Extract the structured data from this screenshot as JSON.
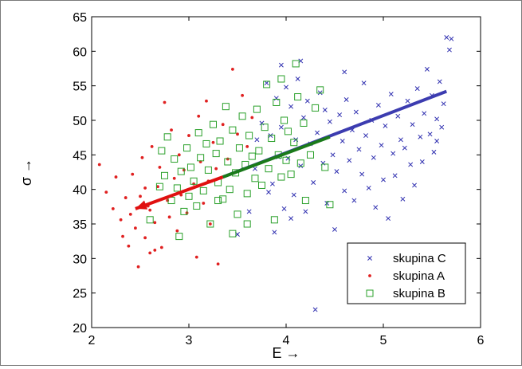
{
  "chart_data": {
    "type": "scatter",
    "xlabel": "E →",
    "ylabel": "σ →",
    "xlim": [
      2,
      6
    ],
    "ylim": [
      20,
      65
    ],
    "xticks": [
      2,
      3,
      4,
      5,
      6
    ],
    "yticks": [
      20,
      25,
      30,
      35,
      40,
      45,
      50,
      55,
      60,
      65
    ],
    "grid": false,
    "legend_position": "bottom-right",
    "series": [
      {
        "name": "skupina C",
        "marker": "x",
        "color": "#3030b0",
        "points": [
          [
            3.5,
            33.5
          ],
          [
            3.62,
            36.8
          ],
          [
            3.68,
            43.0
          ],
          [
            3.7,
            47.2
          ],
          [
            3.75,
            49.6
          ],
          [
            3.8,
            55.4
          ],
          [
            3.82,
            39.6
          ],
          [
            3.84,
            47.8
          ],
          [
            3.86,
            40.8
          ],
          [
            3.88,
            33.8
          ],
          [
            3.9,
            53.2
          ],
          [
            3.92,
            44.7
          ],
          [
            3.95,
            49.0
          ],
          [
            3.98,
            37.2
          ],
          [
            4.0,
            54.8
          ],
          [
            4.02,
            44.5
          ],
          [
            4.05,
            52.0
          ],
          [
            4.08,
            39.2
          ],
          [
            4.1,
            47.2
          ],
          [
            4.12,
            56.0
          ],
          [
            4.15,
            43.4
          ],
          [
            4.18,
            50.4
          ],
          [
            4.2,
            36.8
          ],
          [
            4.22,
            52.8
          ],
          [
            4.25,
            46.6
          ],
          [
            4.28,
            41.0
          ],
          [
            4.3,
            22.6
          ],
          [
            4.32,
            48.2
          ],
          [
            4.35,
            54.0
          ],
          [
            4.38,
            43.8
          ],
          [
            4.4,
            51.5
          ],
          [
            4.42,
            38.0
          ],
          [
            4.45,
            49.8
          ],
          [
            4.48,
            45.0
          ],
          [
            4.5,
            34.2
          ],
          [
            4.52,
            42.6
          ],
          [
            4.55,
            50.8
          ],
          [
            4.58,
            47.0
          ],
          [
            4.6,
            39.8
          ],
          [
            4.62,
            53.0
          ],
          [
            4.65,
            44.2
          ],
          [
            4.68,
            48.6
          ],
          [
            4.7,
            38.4
          ],
          [
            4.72,
            51.2
          ],
          [
            4.75,
            45.8
          ],
          [
            4.78,
            42.2
          ],
          [
            4.8,
            55.4
          ],
          [
            4.82,
            47.8
          ],
          [
            4.85,
            40.2
          ],
          [
            4.88,
            50.0
          ],
          [
            4.9,
            44.6
          ],
          [
            4.92,
            37.4
          ],
          [
            4.95,
            52.2
          ],
          [
            4.98,
            46.4
          ],
          [
            5.0,
            41.4
          ],
          [
            5.02,
            49.2
          ],
          [
            5.05,
            35.8
          ],
          [
            5.08,
            53.8
          ],
          [
            5.1,
            45.2
          ],
          [
            5.12,
            42.0
          ],
          [
            5.15,
            50.6
          ],
          [
            5.18,
            47.2
          ],
          [
            5.2,
            38.6
          ],
          [
            5.22,
            46.0
          ],
          [
            5.25,
            52.8
          ],
          [
            5.28,
            43.6
          ],
          [
            5.3,
            49.4
          ],
          [
            5.32,
            40.6
          ],
          [
            5.35,
            54.6
          ],
          [
            5.38,
            47.6
          ],
          [
            5.4,
            44.0
          ],
          [
            5.42,
            51.0
          ],
          [
            5.45,
            57.4
          ],
          [
            5.48,
            48.0
          ],
          [
            5.5,
            53.6
          ],
          [
            5.52,
            45.4
          ],
          [
            5.55,
            50.2
          ],
          [
            5.58,
            55.6
          ],
          [
            5.6,
            49.0
          ],
          [
            5.62,
            52.4
          ],
          [
            5.65,
            62.0
          ],
          [
            5.7,
            61.8
          ],
          [
            5.68,
            60.2
          ],
          [
            5.55,
            47.0
          ],
          [
            4.6,
            57.0
          ],
          [
            4.15,
            58.6
          ],
          [
            3.95,
            58.0
          ],
          [
            4.05,
            35.8
          ]
        ]
      },
      {
        "name": "skupina A",
        "marker": "dot",
        "color": "#e02020",
        "points": [
          [
            2.08,
            43.6
          ],
          [
            2.15,
            39.6
          ],
          [
            2.22,
            37.2
          ],
          [
            2.25,
            41.8
          ],
          [
            2.3,
            35.6
          ],
          [
            2.32,
            33.2
          ],
          [
            2.35,
            38.8
          ],
          [
            2.38,
            31.8
          ],
          [
            2.4,
            36.4
          ],
          [
            2.42,
            42.2
          ],
          [
            2.45,
            34.4
          ],
          [
            2.48,
            28.8
          ],
          [
            2.5,
            39.0
          ],
          [
            2.52,
            44.6
          ],
          [
            2.55,
            33.0
          ],
          [
            2.58,
            37.6
          ],
          [
            2.6,
            30.8
          ],
          [
            2.62,
            46.2
          ],
          [
            2.65,
            35.2
          ],
          [
            2.68,
            40.4
          ],
          [
            2.7,
            43.2
          ],
          [
            2.72,
            31.6
          ],
          [
            2.75,
            52.6
          ],
          [
            2.78,
            38.4
          ],
          [
            2.8,
            36.0
          ],
          [
            2.82,
            48.6
          ],
          [
            2.85,
            41.6
          ],
          [
            2.88,
            34.0
          ],
          [
            2.9,
            45.0
          ],
          [
            2.92,
            39.2
          ],
          [
            2.95,
            42.8
          ],
          [
            2.98,
            36.6
          ],
          [
            3.0,
            47.8
          ],
          [
            3.05,
            40.8
          ],
          [
            3.08,
            30.2
          ],
          [
            3.1,
            50.6
          ],
          [
            3.12,
            44.0
          ],
          [
            3.15,
            38.0
          ],
          [
            3.18,
            52.8
          ],
          [
            3.2,
            41.2
          ],
          [
            3.22,
            35.0
          ],
          [
            3.25,
            46.8
          ],
          [
            3.28,
            43.0
          ],
          [
            3.3,
            29.2
          ],
          [
            3.35,
            49.4
          ],
          [
            3.4,
            44.4
          ],
          [
            3.45,
            57.4
          ],
          [
            3.5,
            48.0
          ],
          [
            3.55,
            53.6
          ],
          [
            3.6,
            46.2
          ],
          [
            3.65,
            50.4
          ],
          [
            2.55,
            40.2
          ],
          [
            2.6,
            37.0
          ],
          [
            2.65,
            31.2
          ]
        ]
      },
      {
        "name": "skupina B",
        "marker": "square",
        "color": "#2aa02a",
        "points": [
          [
            2.6,
            35.6
          ],
          [
            2.7,
            40.4
          ],
          [
            2.72,
            45.6
          ],
          [
            2.75,
            42.0
          ],
          [
            2.78,
            47.6
          ],
          [
            2.82,
            38.4
          ],
          [
            2.85,
            44.4
          ],
          [
            2.88,
            40.2
          ],
          [
            2.9,
            33.2
          ],
          [
            2.92,
            42.6
          ],
          [
            2.95,
            36.8
          ],
          [
            2.98,
            46.0
          ],
          [
            3.0,
            39.0
          ],
          [
            3.02,
            43.2
          ],
          [
            3.05,
            41.2
          ],
          [
            3.08,
            37.6
          ],
          [
            3.1,
            48.2
          ],
          [
            3.12,
            44.6
          ],
          [
            3.15,
            39.8
          ],
          [
            3.18,
            46.6
          ],
          [
            3.2,
            42.8
          ],
          [
            3.22,
            35.0
          ],
          [
            3.25,
            49.4
          ],
          [
            3.28,
            45.2
          ],
          [
            3.3,
            41.0
          ],
          [
            3.32,
            47.0
          ],
          [
            3.35,
            38.6
          ],
          [
            3.38,
            52.0
          ],
          [
            3.4,
            44.0
          ],
          [
            3.42,
            40.0
          ],
          [
            3.45,
            48.6
          ],
          [
            3.48,
            42.4
          ],
          [
            3.5,
            36.4
          ],
          [
            3.52,
            46.0
          ],
          [
            3.55,
            50.6
          ],
          [
            3.58,
            43.6
          ],
          [
            3.6,
            39.4
          ],
          [
            3.62,
            47.8
          ],
          [
            3.65,
            44.8
          ],
          [
            3.68,
            41.6
          ],
          [
            3.7,
            51.6
          ],
          [
            3.72,
            45.6
          ],
          [
            3.75,
            40.6
          ],
          [
            3.78,
            49.0
          ],
          [
            3.8,
            55.2
          ],
          [
            3.82,
            43.0
          ],
          [
            3.85,
            47.4
          ],
          [
            3.88,
            35.6
          ],
          [
            3.9,
            52.6
          ],
          [
            3.92,
            45.0
          ],
          [
            3.95,
            41.8
          ],
          [
            3.98,
            50.0
          ],
          [
            4.0,
            44.2
          ],
          [
            4.02,
            48.4
          ],
          [
            4.05,
            42.2
          ],
          [
            4.08,
            46.8
          ],
          [
            4.1,
            58.2
          ],
          [
            4.12,
            53.4
          ],
          [
            4.15,
            43.8
          ],
          [
            4.18,
            49.6
          ],
          [
            4.2,
            38.4
          ],
          [
            4.25,
            45.0
          ],
          [
            4.3,
            51.8
          ],
          [
            4.35,
            54.4
          ],
          [
            4.4,
            43.2
          ],
          [
            4.45,
            37.8
          ],
          [
            3.45,
            33.6
          ],
          [
            3.6,
            35.0
          ],
          [
            3.95,
            56.0
          ],
          [
            3.3,
            38.4
          ]
        ]
      }
    ],
    "arrows": [
      {
        "color": "#3c3cb0",
        "from": [
          3.35,
          41.8
        ],
        "to": [
          5.65,
          54.2
        ],
        "head": false
      },
      {
        "color": "#1a7a1a",
        "from": [
          3.35,
          41.8
        ],
        "to": [
          4.45,
          47.6
        ],
        "head": false
      },
      {
        "color": "#e01010",
        "from": [
          3.35,
          41.8
        ],
        "to": [
          2.45,
          37.2
        ],
        "head": true
      }
    ]
  }
}
